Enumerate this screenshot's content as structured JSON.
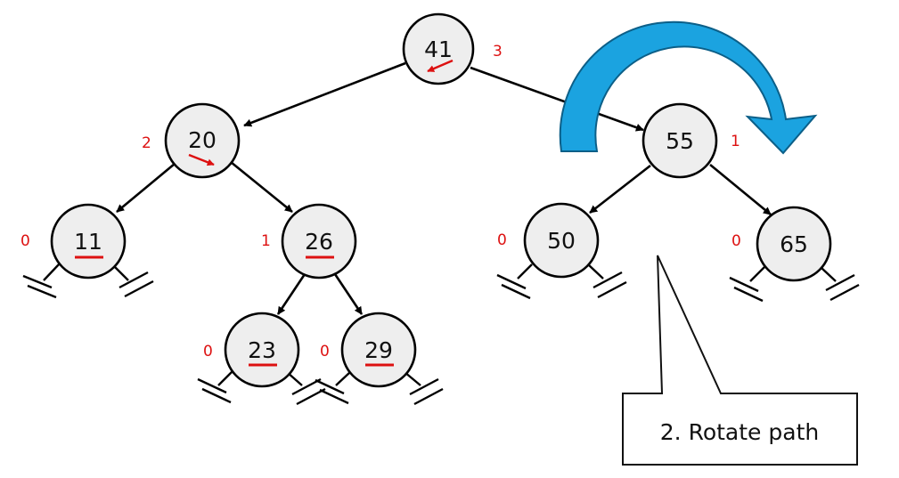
{
  "colors": {
    "node_fill": "#eeeeee",
    "node_stroke": "#000000",
    "height_label": "#dd1111",
    "marker": "#dd1111",
    "rotate_arrow_fill": "#1ba3e0",
    "rotate_arrow_stroke": "#0c5f88"
  },
  "nodes": {
    "n41": {
      "key": "41",
      "height": "3"
    },
    "n20": {
      "key": "20",
      "height": "2"
    },
    "n11": {
      "key": "11",
      "height": "0"
    },
    "n26": {
      "key": "26",
      "height": "1"
    },
    "n23": {
      "key": "23",
      "height": "0"
    },
    "n29": {
      "key": "29",
      "height": "0"
    },
    "n55": {
      "key": "55",
      "height": "1"
    },
    "n50": {
      "key": "50",
      "height": "0"
    },
    "n65": {
      "key": "65",
      "height": "0"
    }
  },
  "callout": {
    "text": "2. Rotate path"
  },
  "icons": {
    "rotate_arrow": "curved-arrow-clockwise-icon",
    "null_link": "ground-symbol-icon"
  }
}
